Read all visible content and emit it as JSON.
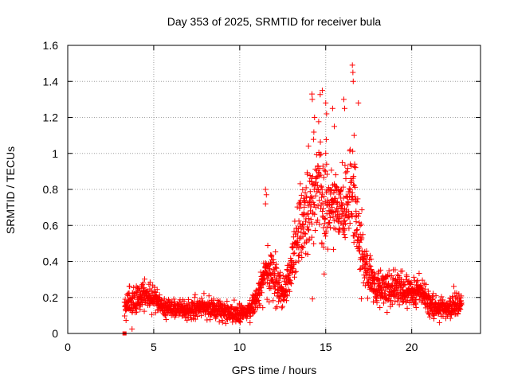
{
  "chart_data": {
    "type": "scatter",
    "title": "Day 353 of 2025, SRMTID for receiver bula",
    "xlabel": "GPS time / hours",
    "ylabel": "SRMTID / TECUs",
    "xlim": [
      0,
      24
    ],
    "ylim": [
      0,
      1.6
    ],
    "xticks": [
      0,
      5,
      10,
      15,
      20
    ],
    "xtick_labels": [
      "0",
      "5",
      "10",
      "15",
      "20"
    ],
    "yticks": [
      0,
      0.2,
      0.4,
      0.6,
      0.8,
      1.0,
      1.2,
      1.4,
      1.6
    ],
    "ytick_labels": [
      "0",
      "0.2",
      "0.4",
      "0.6",
      "0.8",
      "1",
      "1.2",
      "1.4",
      "1.6"
    ],
    "grid": true,
    "legend": "none",
    "marker": "+",
    "color": "#ff0000",
    "series": [
      {
        "name": "SRMTID",
        "x_start": 3.3,
        "x_end": 22.9,
        "step_hours": 0.01,
        "envelope": [
          {
            "x": 3.3,
            "median": 0.15,
            "spread": 0.05
          },
          {
            "x": 3.6,
            "median": 0.17,
            "spread": 0.06
          },
          {
            "x": 4.0,
            "median": 0.18,
            "spread": 0.06
          },
          {
            "x": 4.5,
            "median": 0.22,
            "spread": 0.06
          },
          {
            "x": 5.0,
            "median": 0.19,
            "spread": 0.05
          },
          {
            "x": 5.5,
            "median": 0.14,
            "spread": 0.04
          },
          {
            "x": 6.0,
            "median": 0.14,
            "spread": 0.04
          },
          {
            "x": 7.0,
            "median": 0.13,
            "spread": 0.04
          },
          {
            "x": 8.0,
            "median": 0.14,
            "spread": 0.05
          },
          {
            "x": 9.0,
            "median": 0.13,
            "spread": 0.04
          },
          {
            "x": 9.8,
            "median": 0.1,
            "spread": 0.04
          },
          {
            "x": 10.5,
            "median": 0.12,
            "spread": 0.04
          },
          {
            "x": 11.0,
            "median": 0.2,
            "spread": 0.06
          },
          {
            "x": 11.5,
            "median": 0.33,
            "spread": 0.12
          },
          {
            "x": 12.0,
            "median": 0.3,
            "spread": 0.1
          },
          {
            "x": 12.5,
            "median": 0.22,
            "spread": 0.07
          },
          {
            "x": 13.0,
            "median": 0.36,
            "spread": 0.1
          },
          {
            "x": 13.5,
            "median": 0.55,
            "spread": 0.15
          },
          {
            "x": 14.0,
            "median": 0.7,
            "spread": 0.22
          },
          {
            "x": 14.5,
            "median": 0.8,
            "spread": 0.25
          },
          {
            "x": 15.0,
            "median": 0.72,
            "spread": 0.25
          },
          {
            "x": 15.5,
            "median": 0.7,
            "spread": 0.15
          },
          {
            "x": 16.0,
            "median": 0.68,
            "spread": 0.18
          },
          {
            "x": 16.5,
            "median": 0.8,
            "spread": 0.25
          },
          {
            "x": 17.0,
            "median": 0.45,
            "spread": 0.15
          },
          {
            "x": 17.5,
            "median": 0.32,
            "spread": 0.1
          },
          {
            "x": 18.0,
            "median": 0.25,
            "spread": 0.08
          },
          {
            "x": 19.0,
            "median": 0.24,
            "spread": 0.07
          },
          {
            "x": 20.0,
            "median": 0.22,
            "spread": 0.07
          },
          {
            "x": 20.5,
            "median": 0.25,
            "spread": 0.07
          },
          {
            "x": 21.0,
            "median": 0.16,
            "spread": 0.05
          },
          {
            "x": 22.0,
            "median": 0.13,
            "spread": 0.05
          },
          {
            "x": 22.9,
            "median": 0.17,
            "spread": 0.05
          }
        ],
        "spikes": [
          {
            "x": 11.5,
            "y": 0.8
          },
          {
            "x": 11.55,
            "y": 0.77
          },
          {
            "x": 11.5,
            "y": 0.72
          },
          {
            "x": 14.2,
            "y": 1.33
          },
          {
            "x": 14.22,
            "y": 1.3
          },
          {
            "x": 14.35,
            "y": 1.2
          },
          {
            "x": 14.8,
            "y": 1.35
          },
          {
            "x": 15.0,
            "y": 1.28
          },
          {
            "x": 15.05,
            "y": 1.22
          },
          {
            "x": 15.4,
            "y": 1.25
          },
          {
            "x": 15.5,
            "y": 1.15
          },
          {
            "x": 16.05,
            "y": 1.3
          },
          {
            "x": 16.1,
            "y": 1.25
          },
          {
            "x": 16.55,
            "y": 1.49
          },
          {
            "x": 16.58,
            "y": 1.45
          },
          {
            "x": 16.6,
            "y": 1.4
          },
          {
            "x": 16.65,
            "y": 1.1
          },
          {
            "x": 16.9,
            "y": 1.28
          },
          {
            "x": 10.6,
            "y": 0.06
          }
        ],
        "outlier_points": [
          {
            "x": 3.3,
            "y": 0.0
          }
        ]
      }
    ]
  }
}
